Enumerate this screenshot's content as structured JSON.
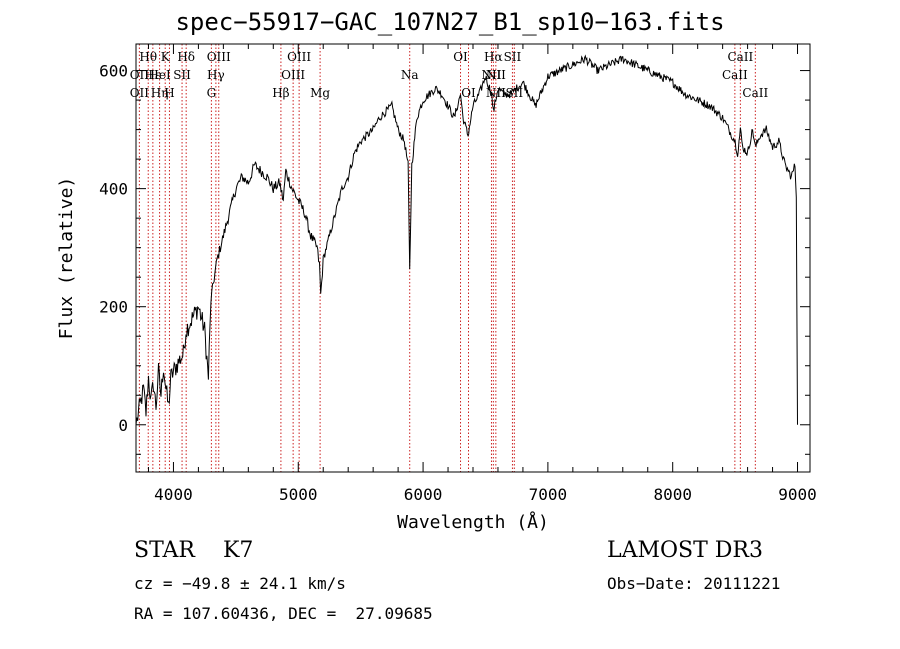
{
  "chart_data": {
    "type": "line",
    "title": "spec−55917−GAC_107N27_B1_sp10−163.fits",
    "xlabel": "Wavelength (Å)",
    "ylabel": "Flux (relative)",
    "xlim": [
      3700,
      9100
    ],
    "ylim": [
      -80,
      645
    ],
    "xticks": [
      4000,
      5000,
      6000,
      7000,
      8000,
      9000
    ],
    "yticks": [
      0,
      200,
      400,
      600
    ],
    "line_color": "#000000",
    "marker_color": "#cc2222",
    "series": [
      {
        "x": [
          3700,
          3720,
          3740,
          3760,
          3780,
          3800,
          3820,
          3840,
          3860,
          3880,
          3900,
          3920,
          3940,
          3960,
          3980,
          4000,
          4050,
          4080,
          4100,
          4150,
          4200,
          4250,
          4280,
          4300,
          4320,
          4350,
          4400,
          4450,
          4500,
          4550,
          4600,
          4650,
          4700,
          4750,
          4800,
          4850,
          4880,
          4900,
          4950,
          5000,
          5050,
          5100,
          5150,
          5170,
          5180,
          5200,
          5250,
          5300,
          5350,
          5400,
          5450,
          5500,
          5550,
          5600,
          5650,
          5700,
          5750,
          5800,
          5850,
          5880,
          5893,
          5910,
          5950,
          6000,
          6050,
          6100,
          6150,
          6200,
          6250,
          6300,
          6320,
          6360,
          6400,
          6450,
          6500,
          6550,
          6563,
          6600,
          6650,
          6700,
          6750,
          6800,
          6900,
          7000,
          7100,
          7200,
          7300,
          7400,
          7500,
          7600,
          7700,
          7800,
          7900,
          8000,
          8100,
          8200,
          8300,
          8400,
          8450,
          8500,
          8520,
          8542,
          8560,
          8600,
          8640,
          8662,
          8700,
          8750,
          8800,
          8850,
          8900,
          8950,
          8980,
          8990,
          9000
        ],
        "values": [
          0,
          20,
          40,
          60,
          20,
          80,
          40,
          70,
          30,
          90,
          50,
          100,
          60,
          30,
          80,
          90,
          110,
          120,
          160,
          180,
          200,
          160,
          80,
          210,
          240,
          280,
          320,
          360,
          400,
          420,
          410,
          440,
          430,
          420,
          400,
          410,
          380,
          430,
          400,
          380,
          360,
          320,
          300,
          270,
          220,
          280,
          320,
          360,
          400,
          420,
          460,
          480,
          490,
          500,
          520,
          530,
          540,
          500,
          480,
          440,
          260,
          440,
          520,
          550,
          560,
          570,
          560,
          540,
          520,
          560,
          520,
          490,
          540,
          560,
          590,
          560,
          530,
          570,
          560,
          560,
          570,
          580,
          540,
          590,
          600,
          610,
          620,
          600,
          610,
          620,
          610,
          600,
          590,
          580,
          560,
          550,
          540,
          520,
          500,
          480,
          460,
          500,
          470,
          460,
          500,
          470,
          490,
          500,
          470,
          480,
          440,
          420,
          440,
          390,
          0
        ]
      }
    ],
    "lines": [
      {
        "label": "Hθ",
        "x": 3798,
        "row": 1
      },
      {
        "label": "OII",
        "x": 3727,
        "row": 2
      },
      {
        "label": "OII",
        "x": 3727,
        "row": 3
      },
      {
        "label": "Hε",
        "x": 3835,
        "row": 2
      },
      {
        "label": "Hη",
        "x": 3889,
        "row": 3
      },
      {
        "label": "K",
        "x": 3934,
        "row": 1
      },
      {
        "label": "HeI",
        "x": 3889,
        "row": 2
      },
      {
        "label": "H",
        "x": 3968,
        "row": 3
      },
      {
        "label": "SII",
        "x": 4069,
        "row": 2
      },
      {
        "label": "Hδ",
        "x": 4102,
        "row": 1
      },
      {
        "label": "OIII",
        "x": 4363,
        "row": 1
      },
      {
        "label": "Hγ",
        "x": 4340,
        "row": 2
      },
      {
        "label": "G",
        "x": 4304,
        "row": 3
      },
      {
        "label": "OIII",
        "x": 5007,
        "row": 1
      },
      {
        "label": "OIII",
        "x": 4959,
        "row": 2
      },
      {
        "label": "Hβ",
        "x": 4861,
        "row": 3
      },
      {
        "label": "Mg",
        "x": 5175,
        "row": 3
      },
      {
        "label": "Na",
        "x": 5893,
        "row": 2
      },
      {
        "label": "OI",
        "x": 6300,
        "row": 1
      },
      {
        "label": "OI",
        "x": 6364,
        "row": 3
      },
      {
        "label": "Hα",
        "x": 6563,
        "row": 1
      },
      {
        "label": "SII",
        "x": 6716,
        "row": 1
      },
      {
        "label": "NII",
        "x": 6548,
        "row": 2
      },
      {
        "label": "NII",
        "x": 6583,
        "row": 2
      },
      {
        "label": "NII",
        "x": 6583,
        "row": 3
      },
      {
        "label": "SII",
        "x": 6731,
        "row": 3
      },
      {
        "label": "CaII",
        "x": 8542,
        "row": 1
      },
      {
        "label": "CaII",
        "x": 8498,
        "row": 2
      },
      {
        "label": "CaII",
        "x": 8662,
        "row": 3
      }
    ]
  },
  "info": {
    "object_class": "STAR",
    "subclass": "K7",
    "survey": "LAMOST DR3",
    "cz": "cz = −49.8 ± 24.1 km/s",
    "obs_date": "Obs−Date: 20111221",
    "radec": "RA = 107.60436, DEC =  27.09685"
  }
}
